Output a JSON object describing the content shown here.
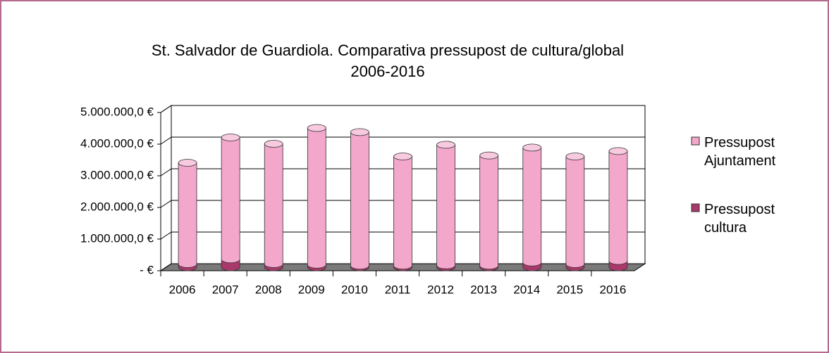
{
  "chart_data": {
    "type": "bar3d_stacked",
    "title": [
      "St. Salvador de Guardiola. Comparativa pressupost de cultura/global",
      "2006-2016"
    ],
    "categories": [
      "2006",
      "2007",
      "2008",
      "2009",
      "2010",
      "2011",
      "2012",
      "2013",
      "2014",
      "2015",
      "2016"
    ],
    "series": [
      {
        "name": "Pressupost cultura",
        "color": "#a8396a",
        "values": [
          100000,
          250000,
          100000,
          80000,
          50000,
          50000,
          60000,
          50000,
          150000,
          100000,
          200000
        ]
      },
      {
        "name": "Pressupost Ajuntament",
        "color": "#f2a7cb",
        "values": [
          3200000,
          3850000,
          3800000,
          4320000,
          4220000,
          3450000,
          3810000,
          3480000,
          3630000,
          3400000,
          3470000
        ]
      }
    ],
    "ylim": [
      0,
      5000000
    ],
    "yticks": [
      {
        "value": 0,
        "label": "- €"
      },
      {
        "value": 1000000,
        "label": "1.000.000,0 €"
      },
      {
        "value": 2000000,
        "label": "2.000.000,0 €"
      },
      {
        "value": 3000000,
        "label": "3.000.000,0 €"
      },
      {
        "value": 4000000,
        "label": "4.000.000,0 €"
      },
      {
        "value": 5000000,
        "label": "5.000.000,0 €"
      }
    ],
    "grid": true,
    "legend": "right"
  }
}
